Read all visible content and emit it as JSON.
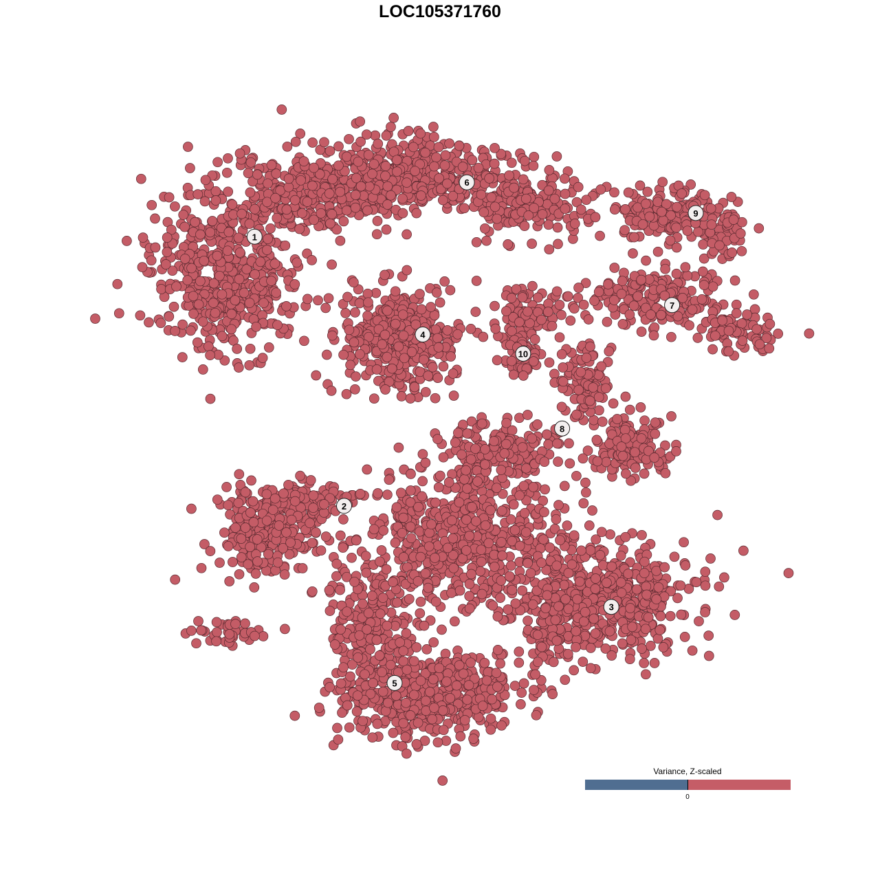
{
  "chart_data": {
    "type": "scatter",
    "title": "LOC105371760",
    "xlabel": "",
    "ylabel": "",
    "grid": false,
    "point_color": "#c45c66",
    "point_stroke": "#5a2a30",
    "clusters": [
      {
        "label": "1",
        "x": -29.0,
        "y": 31.8
      },
      {
        "label": "2",
        "x": -15.0,
        "y": -10.3
      },
      {
        "label": "3",
        "x": 26.8,
        "y": -26.1
      },
      {
        "label": "4",
        "x": -2.7,
        "y": 16.5
      },
      {
        "label": "5",
        "x": -7.1,
        "y": -38.0
      },
      {
        "label": "6",
        "x": 4.2,
        "y": 40.3
      },
      {
        "label": "7",
        "x": 36.3,
        "y": 21.1
      },
      {
        "label": "8",
        "x": 19.1,
        "y": 1.8
      },
      {
        "label": "9",
        "x": 40.0,
        "y": 35.5
      },
      {
        "label": "10",
        "x": 13.0,
        "y": 13.5
      }
    ],
    "legend": {
      "title": "Variance, Z-scaled",
      "placement": "bottom-right",
      "tick": "0",
      "low_color": "#506e91",
      "high_color": "#c55d67"
    }
  }
}
